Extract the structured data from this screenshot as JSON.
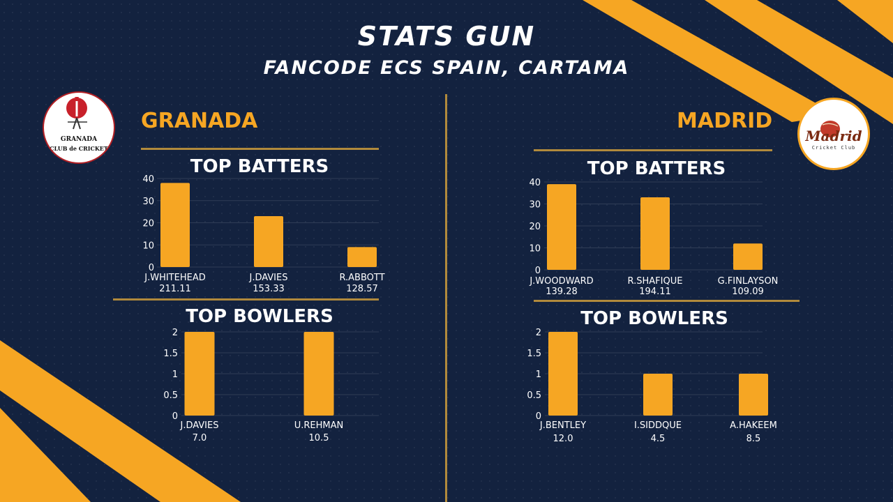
{
  "header": {
    "title": "STATS GUN",
    "subtitle": "FANCODE ECS SPAIN, CARTAMA"
  },
  "teams": {
    "left": {
      "name": "GRANADA",
      "logo_text_1": "GRANADA",
      "logo_text_2": "CLUB de CRICKET"
    },
    "right": {
      "name": "MADRID",
      "logo_text_1": "Madrid",
      "logo_text_2": "Cricket Club"
    }
  },
  "colors": {
    "bar": "#f6a623",
    "accent": "#f6a623",
    "background": "#13223f",
    "divider": "#b18a3c"
  },
  "chart_data": [
    {
      "id": "granada-batters",
      "type": "bar",
      "title": "TOP BATTERS",
      "categories": [
        "J.WHITEHEAD",
        "J.DAVIES",
        "R.ABBOTT"
      ],
      "sublabels": [
        "211.11",
        "153.33",
        "128.57"
      ],
      "values": [
        38,
        23,
        9
      ],
      "ylim": [
        0,
        40
      ],
      "yticks": [
        0,
        10,
        20,
        30,
        40
      ],
      "ytick_labels": [
        "0",
        "10",
        "20",
        "30",
        "40"
      ],
      "grid": true
    },
    {
      "id": "granada-bowlers",
      "type": "bar",
      "title": "TOP BOWLERS",
      "categories": [
        "J.DAVIES",
        "U.REHMAN"
      ],
      "sublabels": [
        "7.0",
        "10.5"
      ],
      "values": [
        2,
        2
      ],
      "ylim": [
        0,
        2
      ],
      "yticks": [
        0,
        0.5,
        1,
        1.5,
        2
      ],
      "ytick_labels": [
        "0",
        "0.5",
        "1",
        "1.5",
        "2"
      ],
      "grid": true
    },
    {
      "id": "madrid-batters",
      "type": "bar",
      "title": "TOP BATTERS",
      "categories": [
        "J.WOODWARD",
        "R.SHAFIQUE",
        "G.FINLAYSON"
      ],
      "sublabels": [
        "139.28",
        "194.11",
        "109.09"
      ],
      "values": [
        39,
        33,
        12
      ],
      "ylim": [
        0,
        40
      ],
      "yticks": [
        0,
        10,
        20,
        30,
        40
      ],
      "ytick_labels": [
        "0",
        "10",
        "20",
        "30",
        "40"
      ],
      "grid": true
    },
    {
      "id": "madrid-bowlers",
      "type": "bar",
      "title": "TOP BOWLERS",
      "categories": [
        "J.BENTLEY",
        "I.SIDDQUE",
        "A.HAKEEM"
      ],
      "sublabels": [
        "12.0",
        "4.5",
        "8.5"
      ],
      "values": [
        2,
        1,
        1
      ],
      "ylim": [
        0,
        2
      ],
      "yticks": [
        0,
        0.5,
        1,
        1.5,
        2
      ],
      "ytick_labels": [
        "0",
        "0.5",
        "1",
        "1.5",
        "2"
      ],
      "grid": true
    }
  ]
}
